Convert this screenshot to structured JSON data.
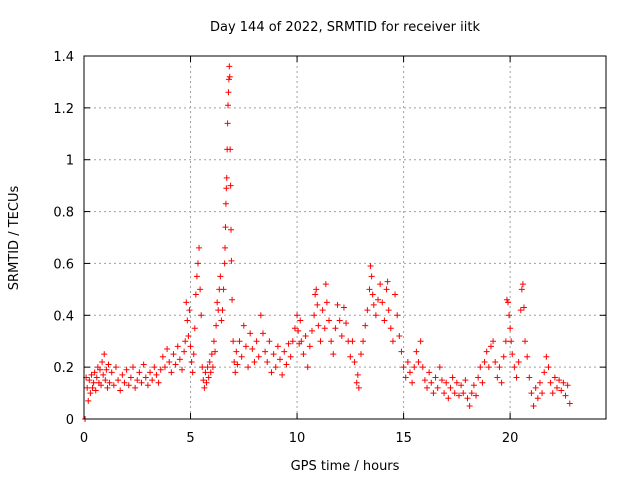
{
  "chart_data": {
    "type": "scatter",
    "title": "Day 144 of 2022, SRMTID for receiver iitk",
    "xlabel": "GPS time / hours",
    "ylabel": "SRMTID / TECUs",
    "xlim": [
      0,
      24.5
    ],
    "ylim": [
      0,
      1.4
    ],
    "xticks": [
      0,
      5,
      10,
      15,
      20
    ],
    "xtick_labels": [
      "0",
      "5",
      "10",
      "15",
      "20"
    ],
    "yticks": [
      0,
      0.2,
      0.4,
      0.6,
      0.8,
      1,
      1.2,
      1.4
    ],
    "ytick_labels": [
      "0",
      "0.2",
      "0.4",
      "0.6",
      "0.8",
      "1",
      "1.2",
      "1.4"
    ],
    "grid": true,
    "marker": "+",
    "color": "#ff0000",
    "series": [
      {
        "name": "SRMTID",
        "points": [
          [
            0.05,
            0.0
          ],
          [
            0.1,
            0.16
          ],
          [
            0.15,
            0.12
          ],
          [
            0.2,
            0.07
          ],
          [
            0.25,
            0.15
          ],
          [
            0.3,
            0.1
          ],
          [
            0.35,
            0.17
          ],
          [
            0.4,
            0.12
          ],
          [
            0.45,
            0.14
          ],
          [
            0.5,
            0.18
          ],
          [
            0.55,
            0.11
          ],
          [
            0.6,
            0.16
          ],
          [
            0.65,
            0.2
          ],
          [
            0.7,
            0.14
          ],
          [
            0.75,
            0.19
          ],
          [
            0.8,
            0.13
          ],
          [
            0.85,
            0.22
          ],
          [
            0.9,
            0.17
          ],
          [
            0.95,
            0.25
          ],
          [
            1.0,
            0.15
          ],
          [
            1.05,
            0.19
          ],
          [
            1.1,
            0.12
          ],
          [
            1.15,
            0.21
          ],
          [
            1.2,
            0.14
          ],
          [
            1.3,
            0.18
          ],
          [
            1.4,
            0.13
          ],
          [
            1.5,
            0.2
          ],
          [
            1.6,
            0.15
          ],
          [
            1.7,
            0.11
          ],
          [
            1.8,
            0.17
          ],
          [
            1.9,
            0.14
          ],
          [
            2.0,
            0.19
          ],
          [
            2.1,
            0.13
          ],
          [
            2.2,
            0.16
          ],
          [
            2.3,
            0.2
          ],
          [
            2.4,
            0.12
          ],
          [
            2.5,
            0.15
          ],
          [
            2.6,
            0.18
          ],
          [
            2.7,
            0.14
          ],
          [
            2.8,
            0.21
          ],
          [
            2.9,
            0.16
          ],
          [
            3.0,
            0.13
          ],
          [
            3.1,
            0.18
          ],
          [
            3.2,
            0.15
          ],
          [
            3.3,
            0.2
          ],
          [
            3.4,
            0.17
          ],
          [
            3.5,
            0.14
          ],
          [
            3.6,
            0.19
          ],
          [
            3.7,
            0.24
          ],
          [
            3.8,
            0.2
          ],
          [
            3.9,
            0.27
          ],
          [
            4.0,
            0.22
          ],
          [
            4.1,
            0.18
          ],
          [
            4.2,
            0.25
          ],
          [
            4.3,
            0.21
          ],
          [
            4.4,
            0.28
          ],
          [
            4.5,
            0.23
          ],
          [
            4.6,
            0.19
          ],
          [
            4.7,
            0.26
          ],
          [
            4.75,
            0.3
          ],
          [
            4.8,
            0.45
          ],
          [
            4.85,
            0.38
          ],
          [
            4.9,
            0.32
          ],
          [
            4.95,
            0.42
          ],
          [
            5.0,
            0.28
          ],
          [
            5.05,
            0.22
          ],
          [
            5.1,
            0.18
          ],
          [
            5.15,
            0.25
          ],
          [
            5.2,
            0.35
          ],
          [
            5.25,
            0.48
          ],
          [
            5.3,
            0.55
          ],
          [
            5.35,
            0.6
          ],
          [
            5.4,
            0.66
          ],
          [
            5.45,
            0.5
          ],
          [
            5.5,
            0.4
          ],
          [
            5.55,
            0.2
          ],
          [
            5.6,
            0.15
          ],
          [
            5.65,
            0.12
          ],
          [
            5.7,
            0.18
          ],
          [
            5.75,
            0.14
          ],
          [
            5.8,
            0.2
          ],
          [
            5.85,
            0.16
          ],
          [
            5.9,
            0.22
          ],
          [
            5.95,
            0.18
          ],
          [
            6.0,
            0.25
          ],
          [
            6.05,
            0.2
          ],
          [
            6.1,
            0.3
          ],
          [
            6.15,
            0.26
          ],
          [
            6.2,
            0.36
          ],
          [
            6.25,
            0.45
          ],
          [
            6.3,
            0.42
          ],
          [
            6.35,
            0.5
          ],
          [
            6.4,
            0.55
          ],
          [
            6.45,
            0.38
          ],
          [
            6.5,
            0.42
          ],
          [
            6.55,
            0.5
          ],
          [
            6.6,
            0.6
          ],
          [
            6.62,
            0.66
          ],
          [
            6.64,
            0.74
          ],
          [
            6.66,
            0.83
          ],
          [
            6.68,
            0.89
          ],
          [
            6.7,
            0.93
          ],
          [
            6.72,
            1.04
          ],
          [
            6.74,
            1.14
          ],
          [
            6.76,
            1.21
          ],
          [
            6.78,
            1.26
          ],
          [
            6.8,
            1.31
          ],
          [
            6.82,
            1.36
          ],
          [
            6.84,
            1.32
          ],
          [
            6.86,
            1.04
          ],
          [
            6.88,
            0.9
          ],
          [
            6.9,
            0.73
          ],
          [
            6.92,
            0.61
          ],
          [
            6.95,
            0.46
          ],
          [
            7.0,
            0.3
          ],
          [
            7.05,
            0.22
          ],
          [
            7.1,
            0.18
          ],
          [
            7.15,
            0.26
          ],
          [
            7.2,
            0.21
          ],
          [
            7.3,
            0.3
          ],
          [
            7.4,
            0.24
          ],
          [
            7.5,
            0.36
          ],
          [
            7.6,
            0.28
          ],
          [
            7.7,
            0.2
          ],
          [
            7.8,
            0.33
          ],
          [
            7.9,
            0.27
          ],
          [
            8.0,
            0.22
          ],
          [
            8.1,
            0.3
          ],
          [
            8.2,
            0.24
          ],
          [
            8.3,
            0.4
          ],
          [
            8.4,
            0.33
          ],
          [
            8.5,
            0.26
          ],
          [
            8.6,
            0.22
          ],
          [
            8.7,
            0.3
          ],
          [
            8.8,
            0.18
          ],
          [
            8.9,
            0.25
          ],
          [
            9.0,
            0.2
          ],
          [
            9.1,
            0.28
          ],
          [
            9.2,
            0.23
          ],
          [
            9.3,
            0.17
          ],
          [
            9.4,
            0.26
          ],
          [
            9.5,
            0.21
          ],
          [
            9.6,
            0.29
          ],
          [
            9.7,
            0.24
          ],
          [
            9.8,
            0.3
          ],
          [
            9.9,
            0.35
          ],
          [
            10.0,
            0.4
          ],
          [
            10.05,
            0.34
          ],
          [
            10.1,
            0.29
          ],
          [
            10.15,
            0.38
          ],
          [
            10.2,
            0.3
          ],
          [
            10.3,
            0.25
          ],
          [
            10.4,
            0.32
          ],
          [
            10.5,
            0.2
          ],
          [
            10.6,
            0.28
          ],
          [
            10.7,
            0.34
          ],
          [
            10.8,
            0.4
          ],
          [
            10.85,
            0.48
          ],
          [
            10.9,
            0.5
          ],
          [
            10.95,
            0.44
          ],
          [
            11.0,
            0.36
          ],
          [
            11.1,
            0.3
          ],
          [
            11.2,
            0.42
          ],
          [
            11.3,
            0.35
          ],
          [
            11.35,
            0.52
          ],
          [
            11.4,
            0.45
          ],
          [
            11.5,
            0.38
          ],
          [
            11.6,
            0.3
          ],
          [
            11.7,
            0.25
          ],
          [
            11.8,
            0.35
          ],
          [
            11.9,
            0.44
          ],
          [
            12.0,
            0.38
          ],
          [
            12.1,
            0.32
          ],
          [
            12.2,
            0.43
          ],
          [
            12.3,
            0.37
          ],
          [
            12.4,
            0.3
          ],
          [
            12.5,
            0.24
          ],
          [
            12.6,
            0.3
          ],
          [
            12.7,
            0.22
          ],
          [
            12.8,
            0.14
          ],
          [
            12.85,
            0.17
          ],
          [
            12.9,
            0.12
          ],
          [
            13.0,
            0.25
          ],
          [
            13.1,
            0.3
          ],
          [
            13.2,
            0.36
          ],
          [
            13.3,
            0.42
          ],
          [
            13.4,
            0.5
          ],
          [
            13.45,
            0.59
          ],
          [
            13.5,
            0.55
          ],
          [
            13.55,
            0.48
          ],
          [
            13.6,
            0.44
          ],
          [
            13.7,
            0.4
          ],
          [
            13.8,
            0.46
          ],
          [
            13.9,
            0.52
          ],
          [
            14.0,
            0.45
          ],
          [
            14.1,
            0.38
          ],
          [
            14.2,
            0.5
          ],
          [
            14.25,
            0.53
          ],
          [
            14.3,
            0.42
          ],
          [
            14.4,
            0.35
          ],
          [
            14.5,
            0.3
          ],
          [
            14.6,
            0.48
          ],
          [
            14.7,
            0.4
          ],
          [
            14.8,
            0.32
          ],
          [
            14.9,
            0.26
          ],
          [
            15.0,
            0.2
          ],
          [
            15.1,
            0.16
          ],
          [
            15.2,
            0.22
          ],
          [
            15.3,
            0.18
          ],
          [
            15.4,
            0.14
          ],
          [
            15.5,
            0.2
          ],
          [
            15.6,
            0.26
          ],
          [
            15.7,
            0.22
          ],
          [
            15.8,
            0.3
          ],
          [
            15.9,
            0.2
          ],
          [
            16.0,
            0.15
          ],
          [
            16.1,
            0.12
          ],
          [
            16.2,
            0.18
          ],
          [
            16.3,
            0.14
          ],
          [
            16.4,
            0.1
          ],
          [
            16.5,
            0.16
          ],
          [
            16.6,
            0.12
          ],
          [
            16.7,
            0.2
          ],
          [
            16.8,
            0.15
          ],
          [
            16.9,
            0.1
          ],
          [
            17.0,
            0.14
          ],
          [
            17.1,
            0.08
          ],
          [
            17.2,
            0.12
          ],
          [
            17.3,
            0.16
          ],
          [
            17.4,
            0.1
          ],
          [
            17.5,
            0.14
          ],
          [
            17.6,
            0.09
          ],
          [
            17.7,
            0.13
          ],
          [
            17.8,
            0.1
          ],
          [
            17.9,
            0.15
          ],
          [
            18.0,
            0.08
          ],
          [
            18.1,
            0.05
          ],
          [
            18.2,
            0.1
          ],
          [
            18.3,
            0.13
          ],
          [
            18.4,
            0.09
          ],
          [
            18.5,
            0.16
          ],
          [
            18.6,
            0.2
          ],
          [
            18.7,
            0.14
          ],
          [
            18.8,
            0.22
          ],
          [
            18.9,
            0.26
          ],
          [
            19.0,
            0.2
          ],
          [
            19.1,
            0.28
          ],
          [
            19.2,
            0.3
          ],
          [
            19.3,
            0.22
          ],
          [
            19.4,
            0.16
          ],
          [
            19.5,
            0.2
          ],
          [
            19.6,
            0.14
          ],
          [
            19.7,
            0.24
          ],
          [
            19.8,
            0.3
          ],
          [
            19.85,
            0.46
          ],
          [
            19.9,
            0.45
          ],
          [
            19.95,
            0.4
          ],
          [
            20.0,
            0.35
          ],
          [
            20.05,
            0.3
          ],
          [
            20.1,
            0.25
          ],
          [
            20.2,
            0.2
          ],
          [
            20.3,
            0.16
          ],
          [
            20.4,
            0.22
          ],
          [
            20.5,
            0.42
          ],
          [
            20.55,
            0.5
          ],
          [
            20.6,
            0.52
          ],
          [
            20.65,
            0.43
          ],
          [
            20.7,
            0.3
          ],
          [
            20.8,
            0.24
          ],
          [
            20.9,
            0.16
          ],
          [
            21.0,
            0.1
          ],
          [
            21.1,
            0.05
          ],
          [
            21.2,
            0.12
          ],
          [
            21.3,
            0.08
          ],
          [
            21.4,
            0.14
          ],
          [
            21.5,
            0.1
          ],
          [
            21.6,
            0.18
          ],
          [
            21.7,
            0.24
          ],
          [
            21.8,
            0.2
          ],
          [
            21.9,
            0.14
          ],
          [
            22.0,
            0.1
          ],
          [
            22.1,
            0.16
          ],
          [
            22.2,
            0.12
          ],
          [
            22.3,
            0.15
          ],
          [
            22.4,
            0.11
          ],
          [
            22.5,
            0.14
          ],
          [
            22.6,
            0.09
          ],
          [
            22.7,
            0.13
          ],
          [
            22.8,
            0.06
          ]
        ]
      }
    ]
  }
}
